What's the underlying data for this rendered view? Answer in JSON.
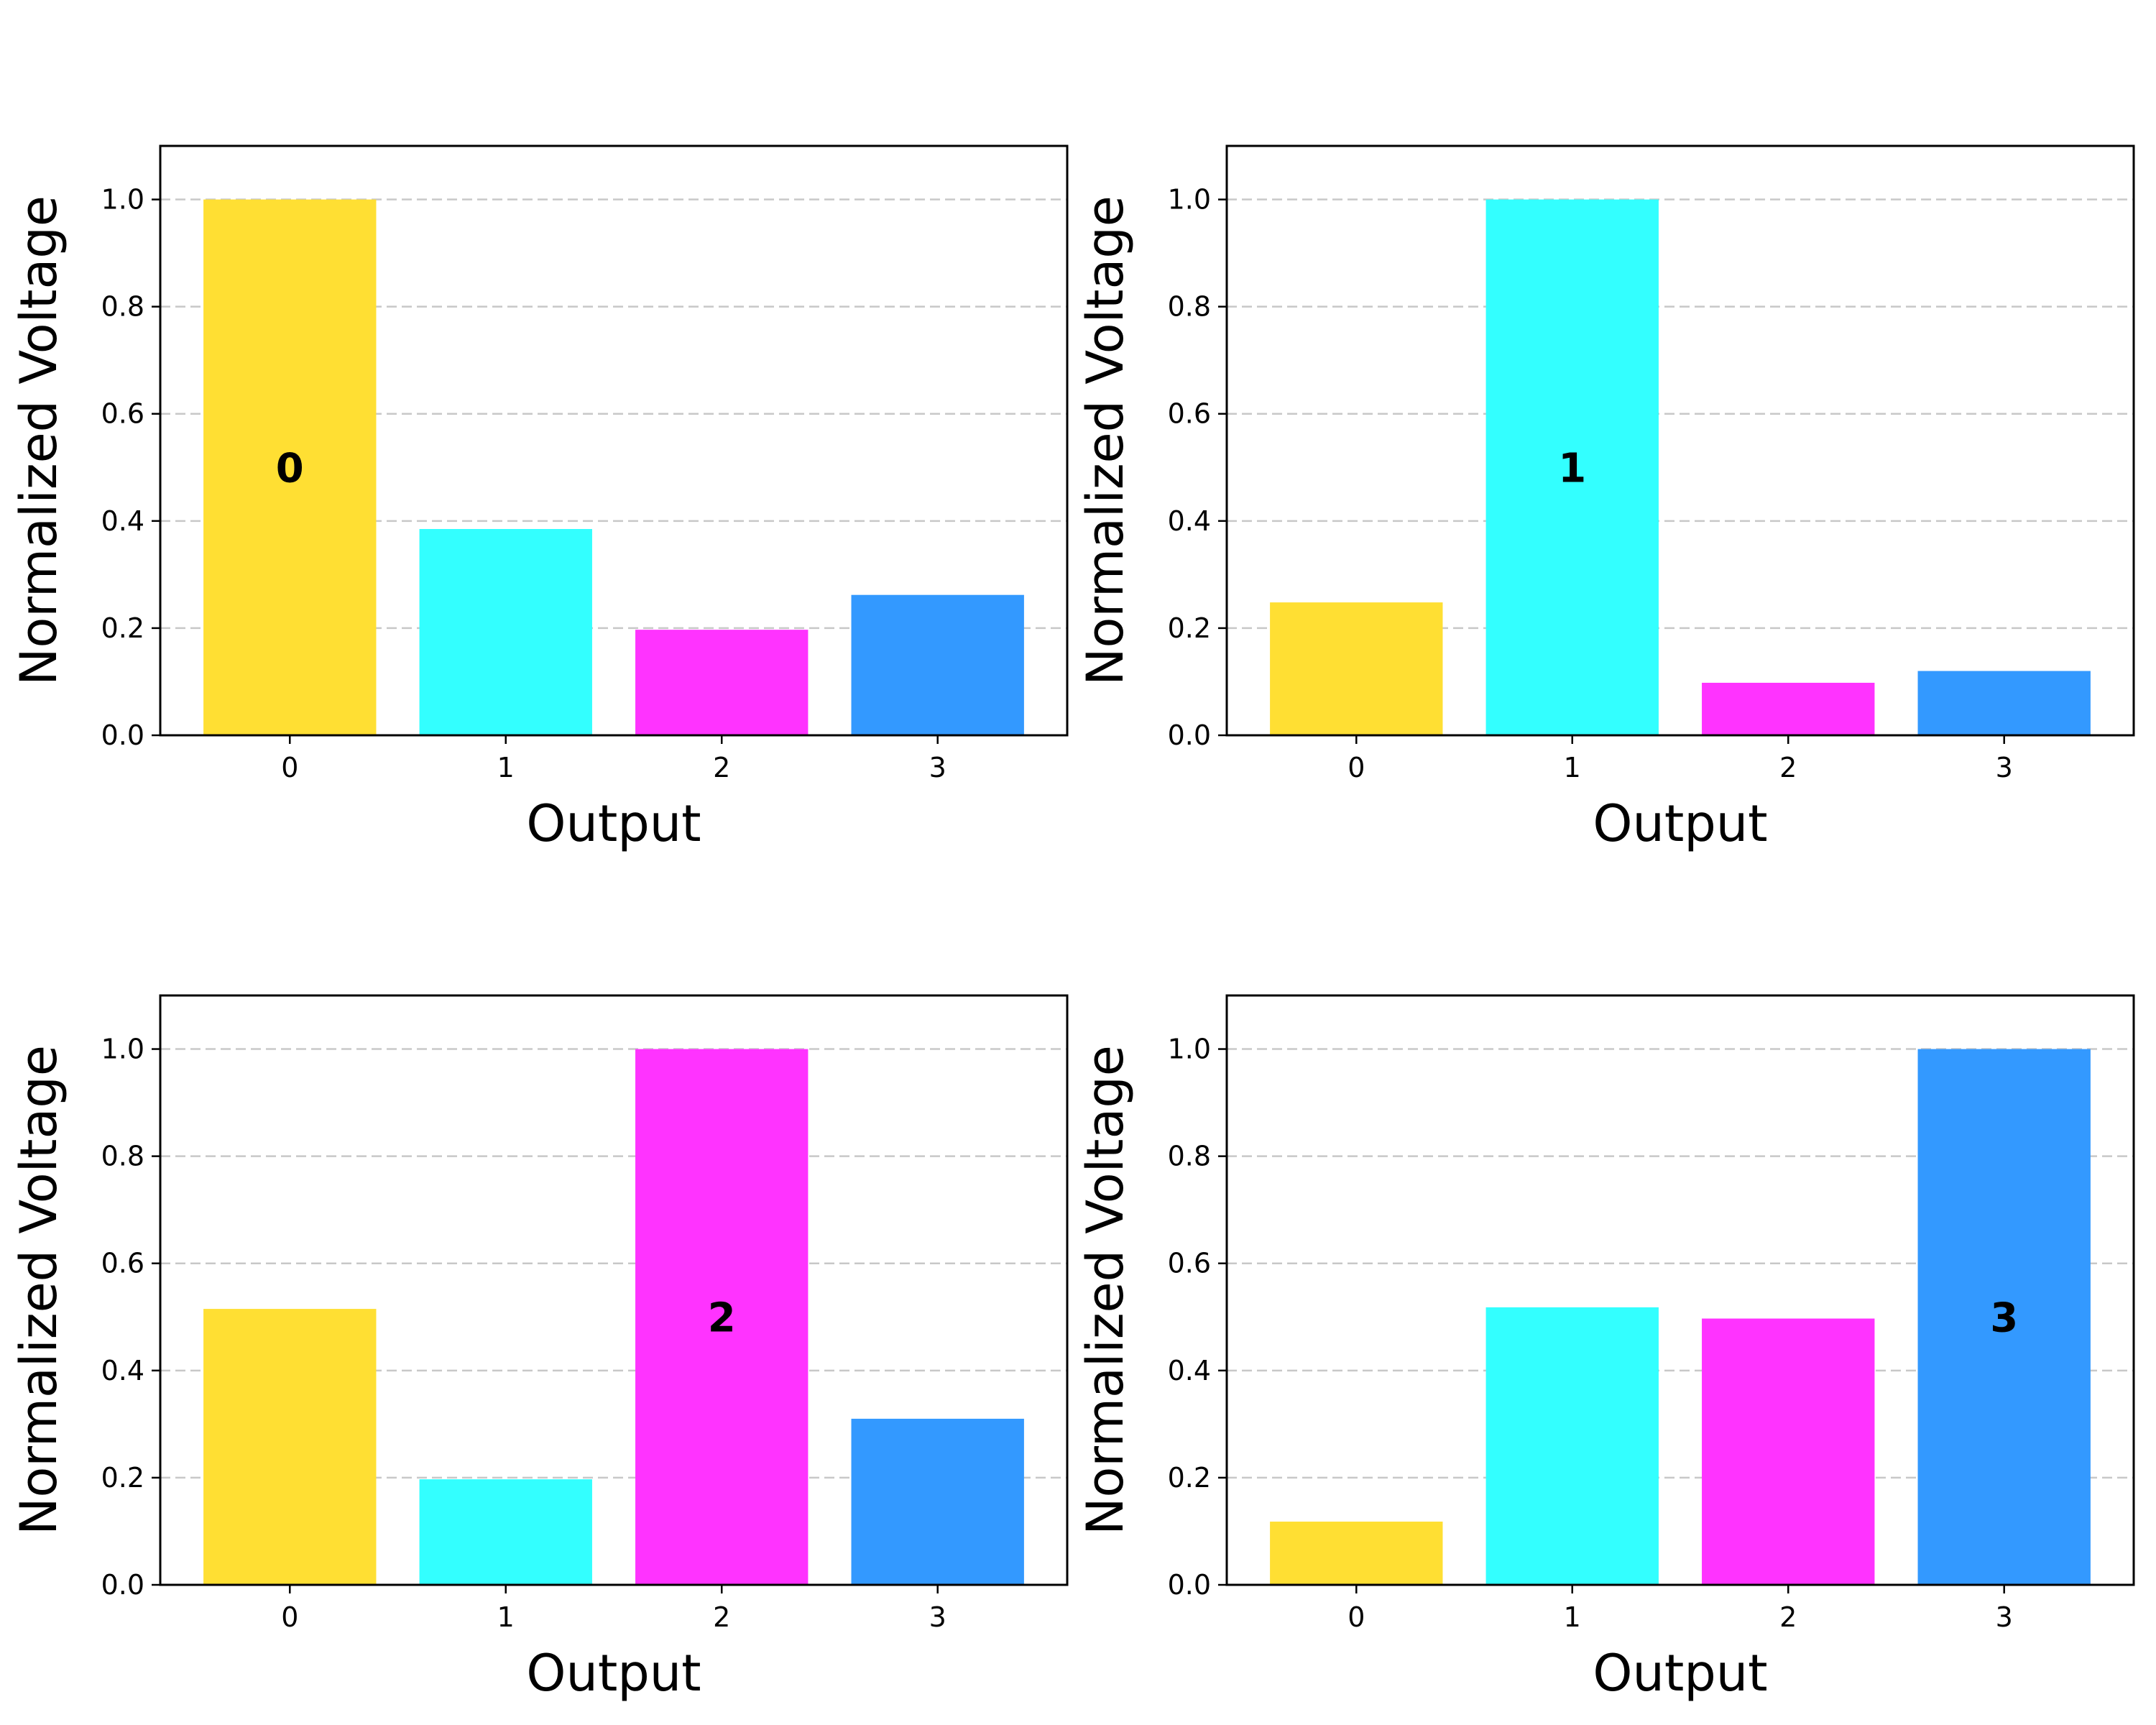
{
  "colors": {
    "output_0": "#FFDF33",
    "output_1": "#33FFFF",
    "output_2": "#FF33FF",
    "output_3": "#3399FF",
    "grid": "#c8c8c8",
    "axes": "#000000"
  },
  "chart_data": [
    {
      "type": "bar",
      "categories": [
        "0",
        "1",
        "2",
        "3"
      ],
      "values": [
        1.0,
        0.385,
        0.197,
        0.262
      ],
      "annotation": {
        "text": "0",
        "category_index": 0,
        "y": 0.5
      },
      "xlabel": "Output",
      "ylabel": "Normalized Voltage",
      "ylim": [
        0,
        1.1
      ],
      "yticks": [
        "0.0",
        "0.2",
        "0.4",
        "0.6",
        "0.8",
        "1.0"
      ],
      "grid": "y-dashed"
    },
    {
      "type": "bar",
      "categories": [
        "0",
        "1",
        "2",
        "3"
      ],
      "values": [
        0.248,
        1.0,
        0.098,
        0.12
      ],
      "annotation": {
        "text": "1",
        "category_index": 1,
        "y": 0.5
      },
      "xlabel": "Output",
      "ylabel": "Normalized Voltage",
      "ylim": [
        0,
        1.1
      ],
      "yticks": [
        "0.0",
        "0.2",
        "0.4",
        "0.6",
        "0.8",
        "1.0"
      ],
      "grid": "y-dashed"
    },
    {
      "type": "bar",
      "categories": [
        "0",
        "1",
        "2",
        "3"
      ],
      "values": [
        0.515,
        0.197,
        1.0,
        0.31
      ],
      "annotation": {
        "text": "2",
        "category_index": 2,
        "y": 0.5
      },
      "xlabel": "Output",
      "ylabel": "Normalized Voltage",
      "ylim": [
        0,
        1.1
      ],
      "yticks": [
        "0.0",
        "0.2",
        "0.4",
        "0.6",
        "0.8",
        "1.0"
      ],
      "grid": "y-dashed"
    },
    {
      "type": "bar",
      "categories": [
        "0",
        "1",
        "2",
        "3"
      ],
      "values": [
        0.118,
        0.518,
        0.497,
        1.0
      ],
      "annotation": {
        "text": "3",
        "category_index": 3,
        "y": 0.5
      },
      "xlabel": "Output",
      "ylabel": "Normalized Voltage",
      "ylim": [
        0,
        1.1
      ],
      "yticks": [
        "0.0",
        "0.2",
        "0.4",
        "0.6",
        "0.8",
        "1.0"
      ],
      "grid": "y-dashed"
    }
  ]
}
